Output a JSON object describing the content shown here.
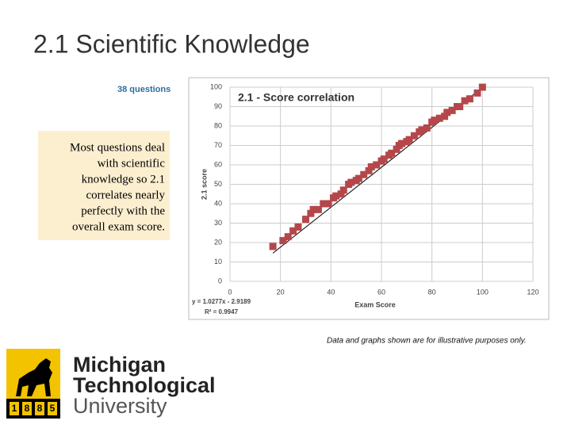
{
  "slide_title": "2.1 Scientific Knowledge",
  "question_count": "38 questions",
  "note": {
    "lines": [
      "Most questions deal",
      "with scientific",
      "knowledge so 2.1",
      "correlates nearly",
      "perfectly with the",
      "overall exam score."
    ]
  },
  "disclaimer": "Data and graphs shown are for illustrative purposes only.",
  "logo": {
    "year": [
      "1",
      "8",
      "8",
      "5"
    ],
    "lines": [
      "Michigan",
      "Technological",
      "University"
    ]
  },
  "chart_data": {
    "type": "scatter",
    "title": "2.1 - Score correlation",
    "x_label": "Exam Score",
    "y_label": "2.1 score",
    "series": [
      {
        "name": "2.1 score",
        "color": "#b5474b",
        "x": [
          17,
          21,
          23,
          25,
          27,
          30,
          32,
          33,
          35,
          37,
          39,
          41,
          42,
          44,
          45,
          47,
          48,
          50,
          51,
          53,
          55,
          56,
          58,
          60,
          61,
          63,
          64,
          66,
          67,
          68,
          70,
          71,
          73,
          75,
          76,
          78,
          80,
          81,
          83,
          85,
          86,
          88,
          90,
          91,
          93,
          95,
          98,
          100
        ],
        "values": [
          18,
          21,
          23,
          26,
          28,
          32,
          35,
          37,
          37,
          40,
          40,
          43,
          44,
          45,
          47,
          50,
          51,
          52,
          53,
          55,
          57,
          59,
          60,
          62,
          63,
          65,
          66,
          68,
          70,
          71,
          72,
          73,
          75,
          77,
          78,
          79,
          82,
          83,
          84,
          85,
          87,
          88,
          90,
          90,
          93,
          94,
          97,
          100
        ]
      }
    ],
    "trendline": {
      "slope": 1.0277,
      "intercept": -2.9189,
      "equation_label": "y = 1.0277x - 2.9189",
      "r2_label": "R² = 0.9947"
    },
    "xlim": [
      0,
      120
    ],
    "xticks": [
      0,
      20,
      40,
      60,
      80,
      100,
      120
    ],
    "ylim": [
      0,
      100
    ],
    "yticks": [
      0,
      10,
      20,
      30,
      40,
      50,
      60,
      70,
      80,
      90,
      100
    ],
    "grid": true
  }
}
